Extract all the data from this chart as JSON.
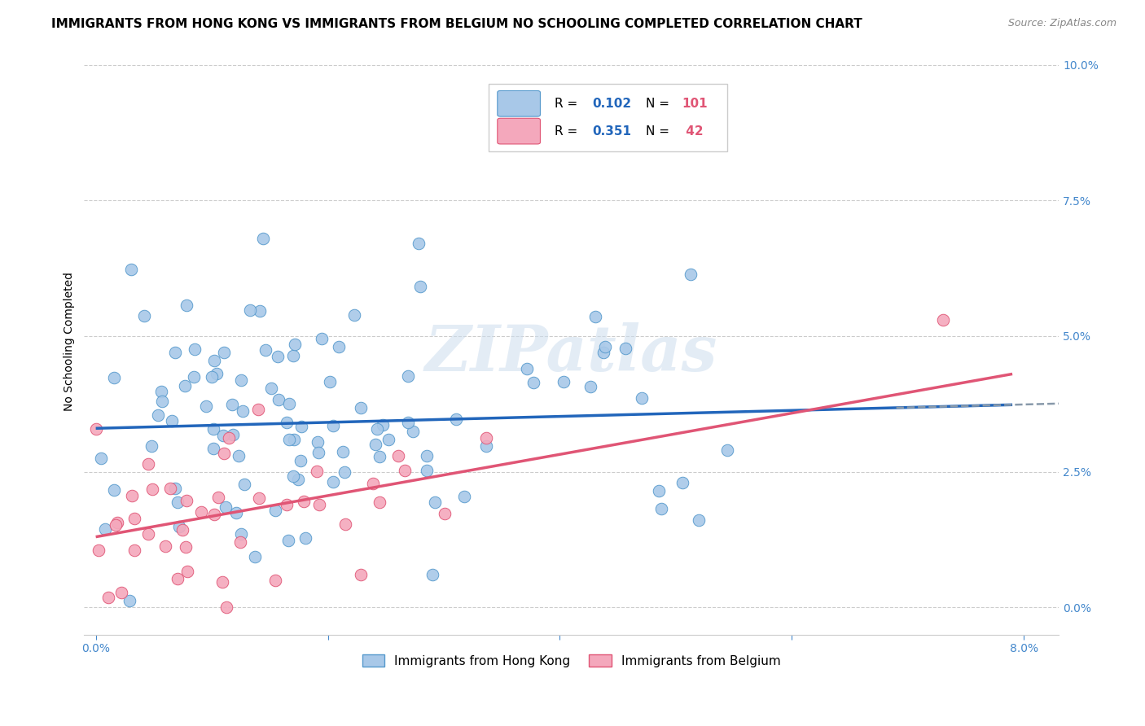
{
  "title": "IMMIGRANTS FROM HONG KONG VS IMMIGRANTS FROM BELGIUM NO SCHOOLING COMPLETED CORRELATION CHART",
  "source": "Source: ZipAtlas.com",
  "ylabel": "No Schooling Completed",
  "ytick_values": [
    0.0,
    0.025,
    0.05,
    0.075,
    0.1
  ],
  "xlim": [
    0.0,
    0.08
  ],
  "ylim": [
    -0.005,
    0.103
  ],
  "hk_color": "#A8C8E8",
  "bel_color": "#F4A8BC",
  "hk_edge_color": "#5599CC",
  "bel_edge_color": "#E05575",
  "hk_line_color": "#2266BB",
  "bel_line_color": "#E05575",
  "dash_color": "#8899AA",
  "tick_color": "#4488CC",
  "hk_R": 0.102,
  "hk_N": 101,
  "bel_R": 0.351,
  "bel_N": 42,
  "watermark": "ZIPatlas",
  "title_fontsize": 11,
  "source_fontsize": 9,
  "axis_label_fontsize": 10,
  "tick_fontsize": 10,
  "legend_fontsize": 11,
  "hk_intercept": 0.033,
  "hk_slope": 0.055,
  "bel_intercept": 0.013,
  "bel_slope": 0.38
}
